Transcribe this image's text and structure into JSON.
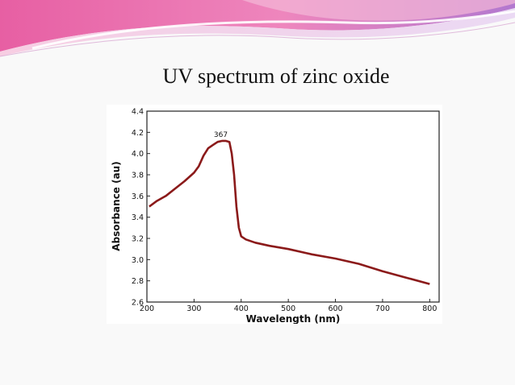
{
  "slide": {
    "title": "UV spectrum of zinc oxide",
    "colors": {
      "background": "#f9f9f9",
      "wave_pink": "#e75fa3",
      "wave_purple": "#b278cf",
      "wave_light": "#f3b8d7"
    }
  },
  "chart_data": {
    "type": "line",
    "title": "",
    "xlabel": "Wavelength (nm)",
    "ylabel": "Absorbance (au)",
    "xlim": [
      200,
      820
    ],
    "ylim": [
      2.6,
      4.4
    ],
    "xticks": [
      "200",
      "300",
      "400",
      "500",
      "600",
      "700",
      "800"
    ],
    "yticks": [
      "2.6",
      "2.8",
      "3.0",
      "3.2",
      "3.4",
      "3.6",
      "3.8",
      "4.0",
      "4.2",
      "4.4"
    ],
    "grid": false,
    "line_color": "#8b1a1a",
    "annotations": [
      {
        "text": "367",
        "x": 367,
        "y": 4.12
      }
    ],
    "series": [
      {
        "x": [
          205,
          220,
          240,
          260,
          280,
          300,
          310,
          320,
          330,
          340,
          350,
          360,
          367,
          375,
          380,
          385,
          390,
          395,
          400,
          410,
          430,
          460,
          500,
          550,
          600,
          650,
          700,
          750,
          800
        ],
        "y": [
          3.5,
          3.55,
          3.6,
          3.67,
          3.74,
          3.82,
          3.88,
          3.98,
          4.05,
          4.08,
          4.11,
          4.12,
          4.12,
          4.11,
          4.0,
          3.8,
          3.5,
          3.3,
          3.22,
          3.19,
          3.16,
          3.13,
          3.1,
          3.05,
          3.01,
          2.96,
          2.89,
          2.83,
          2.77
        ]
      }
    ]
  }
}
